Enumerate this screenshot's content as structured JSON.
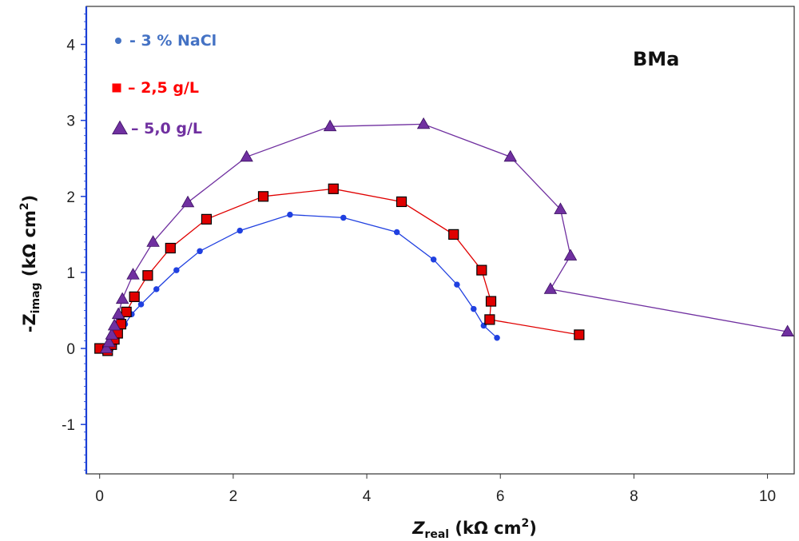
{
  "chart_data": {
    "type": "scatter",
    "title": "",
    "annotation": "BMa",
    "xlabel": {
      "main": "Z",
      "sub": "real",
      "unit": " (kΩ cm",
      "sup": "2",
      "close": ")"
    },
    "ylabel": {
      "prefix": "-Z",
      "sub": "imag",
      "unit": " (kΩ cm",
      "sup": "2",
      "close": ")"
    },
    "xlim": [
      -0.2,
      10.4
    ],
    "ylim": [
      -1.65,
      4.5
    ],
    "xticks": [
      0,
      2,
      4,
      6,
      8,
      10
    ],
    "yticks": [
      -1,
      0,
      1,
      2,
      3,
      4
    ],
    "grid": false,
    "legend_position": "top-left",
    "series": [
      {
        "name": "- 3 % NaCl",
        "color": "#2040e0",
        "legend_color": "#4472c4",
        "marker": "circle",
        "x": [
          0.12,
          0.14,
          0.16,
          0.18,
          0.2,
          0.22,
          0.25,
          0.3,
          0.38,
          0.48,
          0.62,
          0.85,
          1.15,
          1.5,
          2.1,
          2.85,
          3.65,
          4.45,
          5.0,
          5.35,
          5.6,
          5.75,
          5.95
        ],
        "y": [
          -0.06,
          -0.05,
          -0.02,
          0.01,
          0.04,
          0.07,
          0.12,
          0.2,
          0.32,
          0.45,
          0.58,
          0.78,
          1.03,
          1.28,
          1.55,
          1.76,
          1.72,
          1.53,
          1.17,
          0.84,
          0.52,
          0.3,
          0.14
        ]
      },
      {
        "name": "– 2,5 g/L",
        "color": "#e00000",
        "legend_color": "#ff0000",
        "marker": "square",
        "x": [
          0.0,
          0.12,
          0.18,
          0.22,
          0.27,
          0.32,
          0.4,
          0.52,
          0.72,
          1.06,
          1.6,
          2.45,
          3.5,
          4.52,
          5.3,
          5.72,
          5.86,
          5.84,
          7.18
        ],
        "y": [
          0.0,
          -0.03,
          0.05,
          0.12,
          0.2,
          0.32,
          0.48,
          0.68,
          0.96,
          1.32,
          1.7,
          2.0,
          2.1,
          1.93,
          1.5,
          1.03,
          0.62,
          0.38,
          0.18
        ]
      },
      {
        "name": "– 5,0 g/L",
        "color": "#7030a0",
        "legend_color": "#7030a0",
        "marker": "triangle",
        "x": [
          0.1,
          0.14,
          0.18,
          0.22,
          0.28,
          0.34,
          0.5,
          0.8,
          1.32,
          2.2,
          3.45,
          4.85,
          6.15,
          6.9,
          7.05,
          6.75,
          10.3
        ],
        "y": [
          0.0,
          0.08,
          0.18,
          0.3,
          0.45,
          0.65,
          0.97,
          1.4,
          1.92,
          2.52,
          2.92,
          2.95,
          2.52,
          1.83,
          1.22,
          0.78,
          0.22
        ]
      }
    ]
  }
}
